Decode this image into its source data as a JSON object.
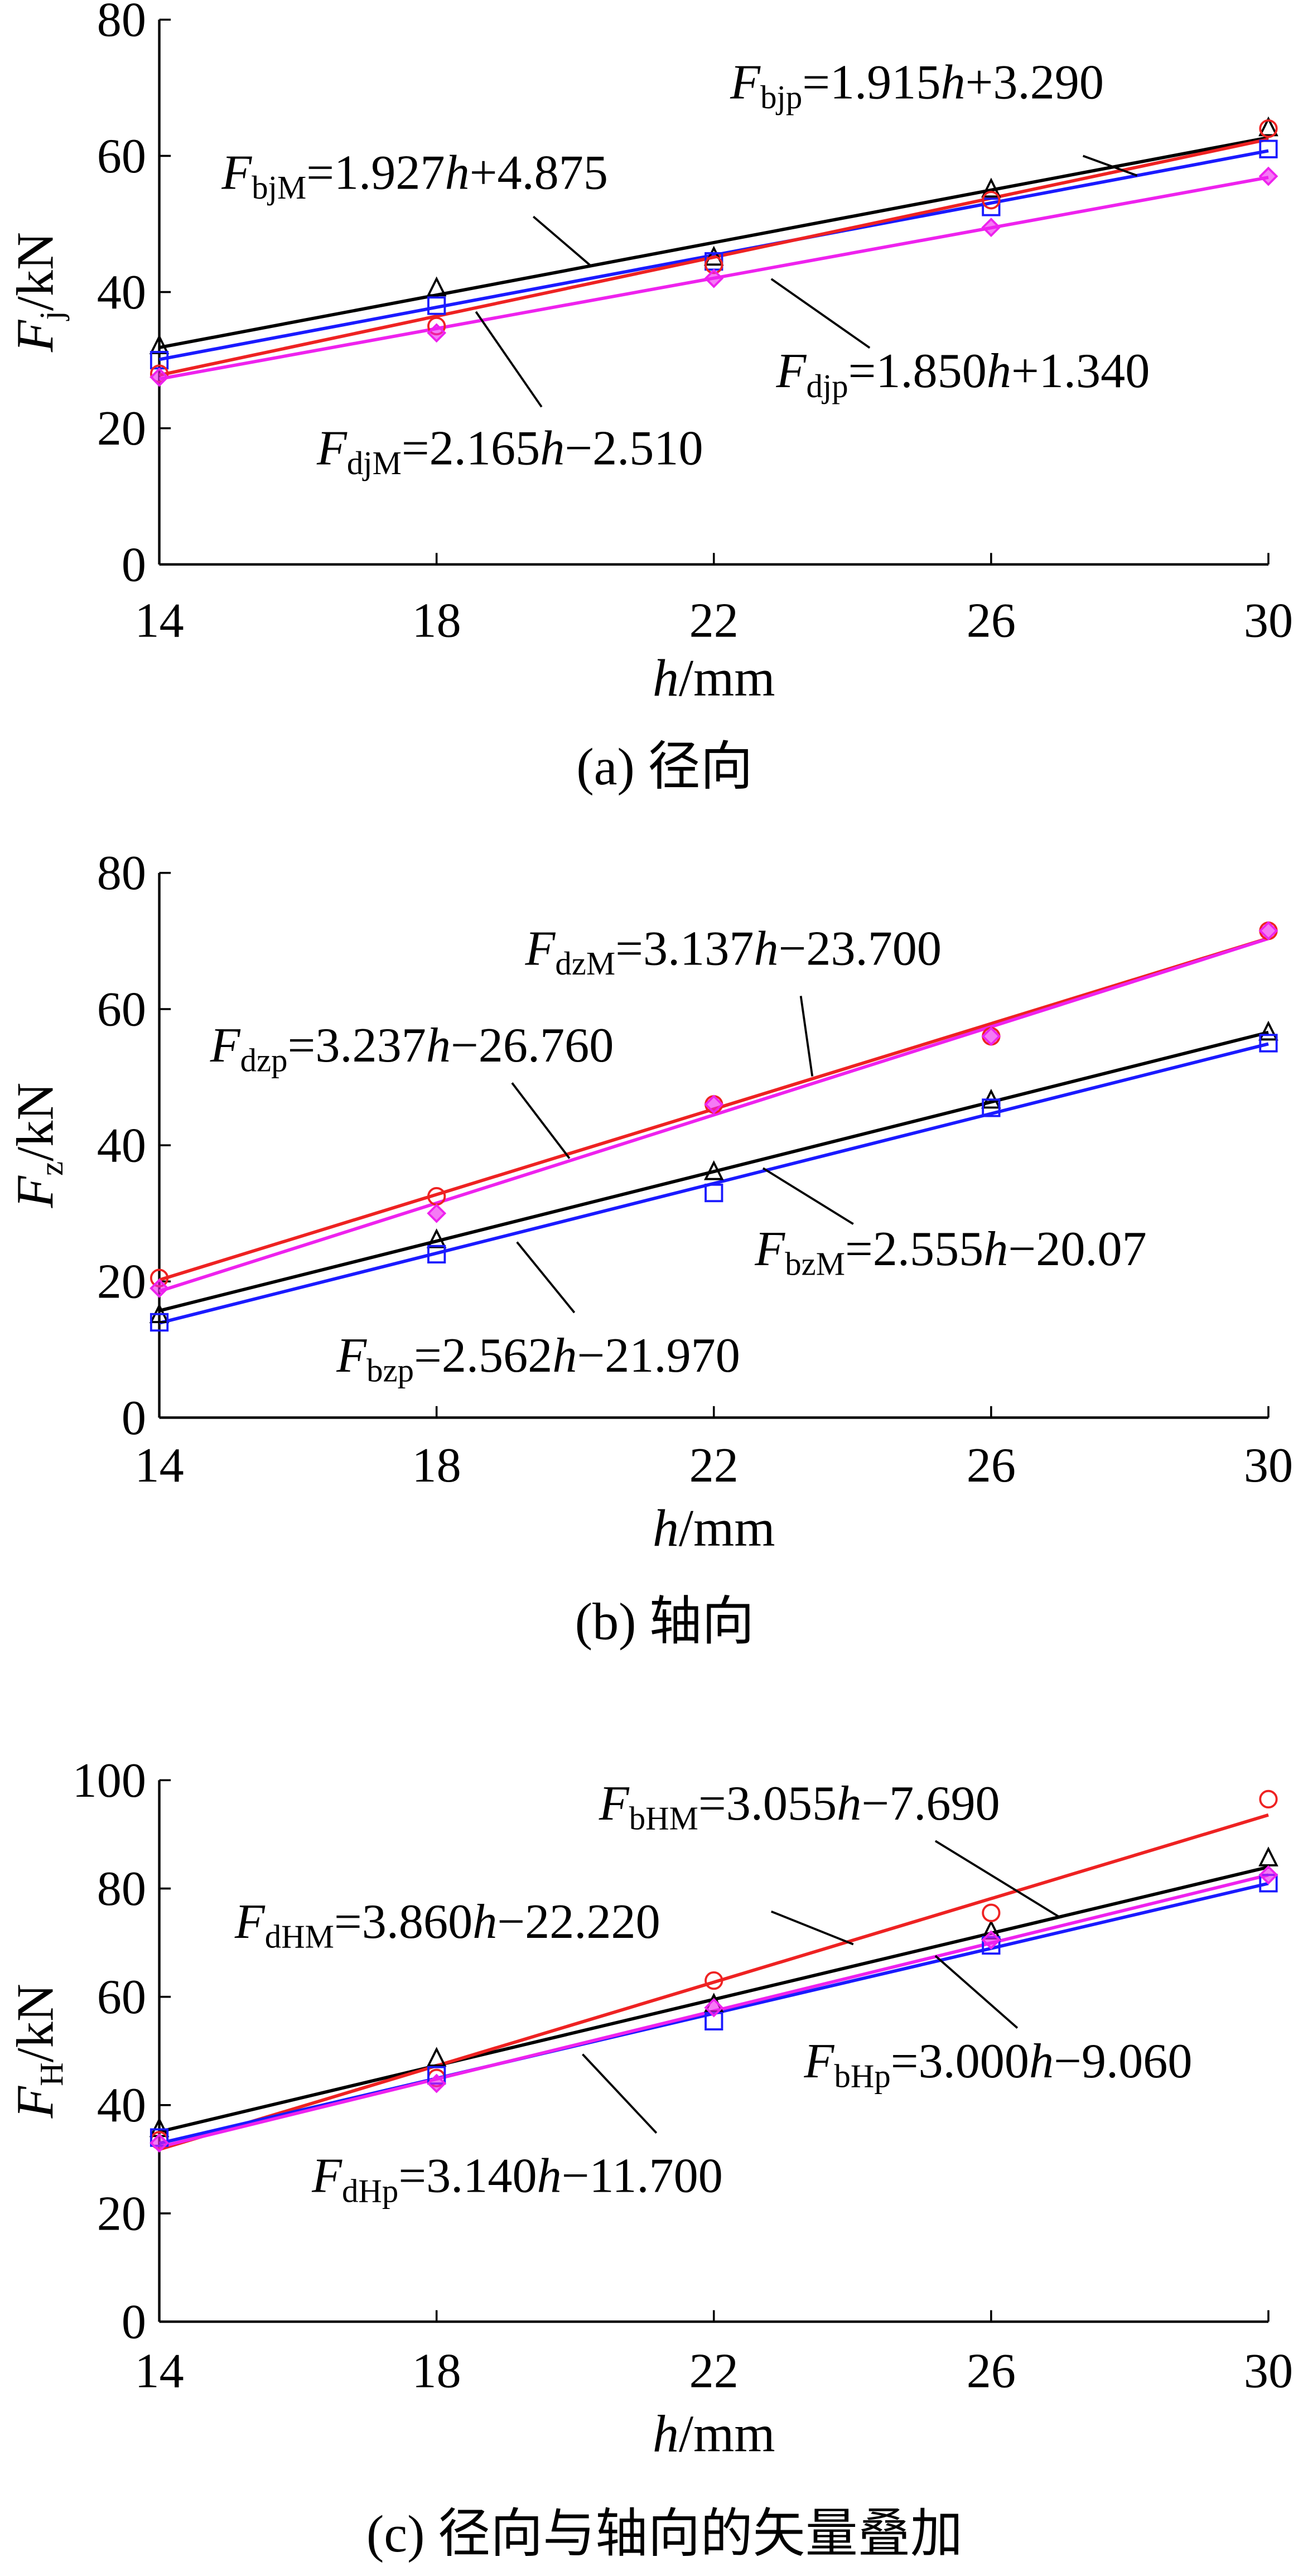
{
  "chart_data": [
    {
      "type": "scatter",
      "caption": "(a) 径向",
      "x_label": {
        "symbol": "h",
        "unit": "/mm"
      },
      "y_label": {
        "symbol": "F",
        "sub": "j",
        "unit": "/kN"
      },
      "x": [
        14,
        18,
        22,
        26,
        30
      ],
      "xlim": [
        14,
        30
      ],
      "xticks": [
        14,
        18,
        22,
        26,
        30
      ],
      "ylim": [
        0,
        80
      ],
      "yticks": [
        0,
        20,
        40,
        60,
        80
      ],
      "series": [
        {
          "color": "#000000",
          "marker": "triangle",
          "values": [
            32,
            40.5,
            45,
            55,
            64
          ],
          "fit": [
            1.927,
            4.875
          ]
        },
        {
          "color": "#1a1aff",
          "marker": "square",
          "values": [
            30,
            38,
            44.5,
            52.5,
            61
          ],
          "fit": [
            1.915,
            3.29
          ]
        },
        {
          "color": "#ee2222",
          "marker": "circle",
          "values": [
            28,
            35,
            44,
            53.5,
            64
          ],
          "fit": [
            2.165,
            -2.51
          ]
        },
        {
          "color": "#ee22ee",
          "marker": "diamond",
          "values": [
            27.5,
            34,
            42,
            49.5,
            57
          ],
          "fit": [
            1.85,
            1.34
          ]
        }
      ],
      "annotations": [
        {
          "symbol": "F",
          "sub": "bjp",
          "coef": "=1.915",
          "var": "h",
          "rest": "+3.290"
        },
        {
          "symbol": "F",
          "sub": "bjM",
          "coef": "=1.927",
          "var": "h",
          "rest": "+4.875"
        },
        {
          "symbol": "F",
          "sub": "djp",
          "coef": "=1.850",
          "var": "h",
          "rest": "+1.340"
        },
        {
          "symbol": "F",
          "sub": "djM",
          "coef": "=2.165",
          "var": "h",
          "rest": "−2.510"
        }
      ]
    },
    {
      "type": "scatter",
      "caption": "(b) 轴向",
      "x_label": {
        "symbol": "h",
        "unit": "/mm"
      },
      "y_label": {
        "symbol": "F",
        "sub": "z",
        "unit": "/kN"
      },
      "x": [
        14,
        18,
        22,
        26,
        30
      ],
      "xlim": [
        14,
        30
      ],
      "xticks": [
        14,
        18,
        22,
        26,
        30
      ],
      "ylim": [
        0,
        80
      ],
      "yticks": [
        0,
        20,
        40,
        60,
        80
      ],
      "series": [
        {
          "color": "#ee2222",
          "marker": "circle",
          "values": [
            20.5,
            32.5,
            46,
            56,
            71.5
          ],
          "fit": [
            3.137,
            -23.7
          ]
        },
        {
          "color": "#ee22ee",
          "marker": "diamond",
          "values": [
            19,
            30,
            46,
            56,
            71.5
          ],
          "fit": [
            3.237,
            -26.76
          ]
        },
        {
          "color": "#000000",
          "marker": "triangle",
          "values": [
            15,
            26,
            36,
            46.5,
            56.5
          ],
          "fit": [
            2.555,
            -20.07
          ]
        },
        {
          "color": "#1a1aff",
          "marker": "square",
          "values": [
            14,
            24,
            33,
            45.5,
            55
          ],
          "fit": [
            2.562,
            -21.97
          ]
        }
      ],
      "annotations": [
        {
          "symbol": "F",
          "sub": "dzM",
          "coef": "=3.137",
          "var": "h",
          "rest": "−23.700"
        },
        {
          "symbol": "F",
          "sub": "dzp",
          "coef": "=3.237",
          "var": "h",
          "rest": "−26.760"
        },
        {
          "symbol": "F",
          "sub": "bzM",
          "coef": "=2.555",
          "var": "h",
          "rest": "−20.07"
        },
        {
          "symbol": "F",
          "sub": "bzp",
          "coef": "=2.562",
          "var": "h",
          "rest": "−21.970"
        }
      ]
    },
    {
      "type": "scatter",
      "caption": "(c) 径向与轴向的矢量叠加",
      "x_label": {
        "symbol": "h",
        "unit": "/mm"
      },
      "y_label": {
        "symbol": "F",
        "sub": "H",
        "unit": "/kN"
      },
      "x": [
        14,
        18,
        22,
        26,
        30
      ],
      "xlim": [
        14,
        30
      ],
      "xticks": [
        14,
        18,
        22,
        26,
        30
      ],
      "ylim": [
        0,
        100
      ],
      "yticks": [
        0,
        20,
        40,
        60,
        80,
        100
      ],
      "series": [
        {
          "color": "#000000",
          "marker": "triangle",
          "values": [
            35.5,
            48.5,
            58.5,
            72,
            85.5
          ],
          "fit": [
            3.055,
            -7.69
          ]
        },
        {
          "color": "#ee2222",
          "marker": "circle",
          "values": [
            33.5,
            45,
            63,
            75.5,
            96.5
          ],
          "fit": [
            3.86,
            -22.22
          ]
        },
        {
          "color": "#1a1aff",
          "marker": "square",
          "values": [
            34,
            45.5,
            55.5,
            69.5,
            81
          ],
          "fit": [
            3.0,
            -9.06
          ]
        },
        {
          "color": "#ee22ee",
          "marker": "diamond",
          "values": [
            33,
            44,
            58,
            70.5,
            82.5
          ],
          "fit": [
            3.14,
            -11.7
          ]
        }
      ],
      "annotations": [
        {
          "symbol": "F",
          "sub": "bHM",
          "coef": "=3.055",
          "var": "h",
          "rest": "−7.690"
        },
        {
          "symbol": "F",
          "sub": "dHM",
          "coef": "=3.860",
          "var": "h",
          "rest": "−22.220"
        },
        {
          "symbol": "F",
          "sub": "bHp",
          "coef": "=3.000",
          "var": "h",
          "rest": "−9.060"
        },
        {
          "symbol": "F",
          "sub": "dHp",
          "coef": "=3.140",
          "var": "h",
          "rest": "−11.700"
        }
      ]
    }
  ]
}
